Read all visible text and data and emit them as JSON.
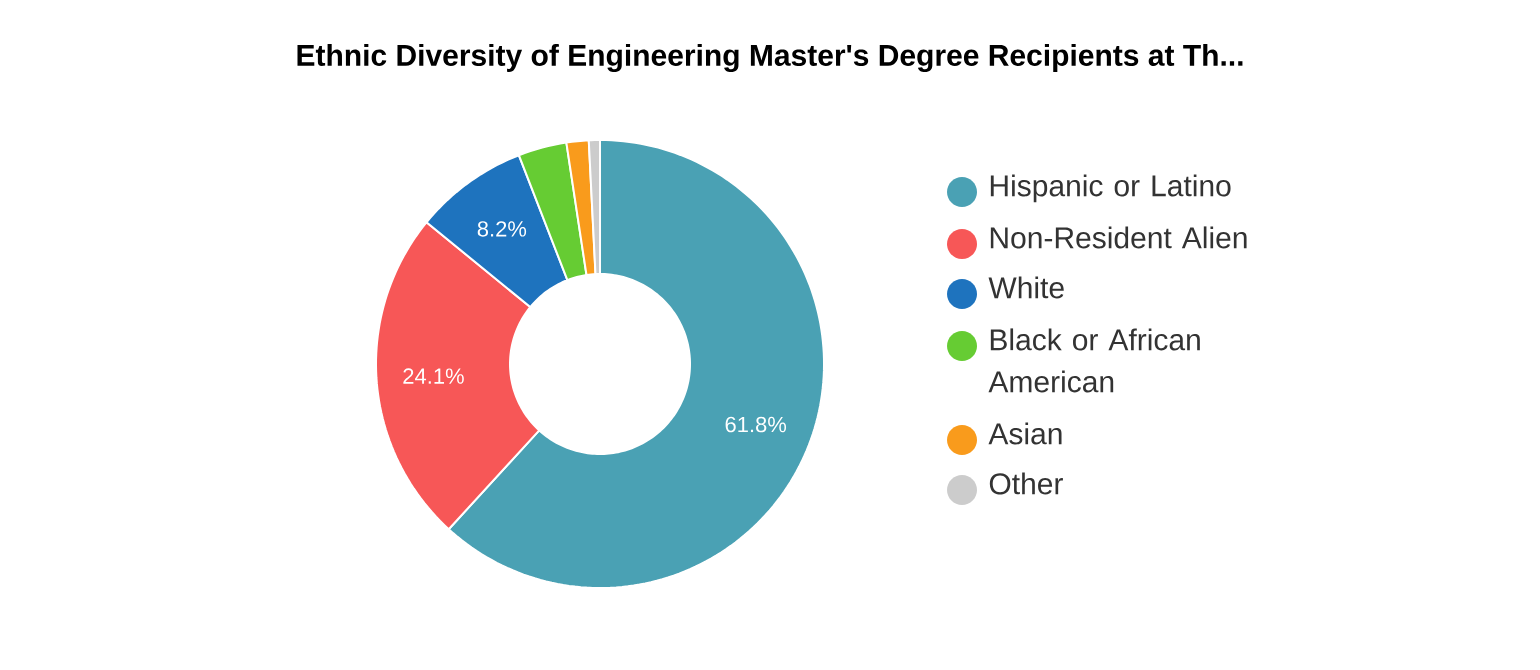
{
  "chart_data": {
    "type": "donut",
    "title": "Ethnic Diversity of Engineering Master's Degree Recipients at Th...",
    "categories": [
      "Hispanic or Latino",
      "Non-Resident Alien",
      "White",
      "Black or African American",
      "Asian",
      "Other"
    ],
    "values": [
      61.8,
      24.1,
      8.2,
      3.5,
      1.6,
      0.8
    ],
    "colors": [
      "#4aa1b4",
      "#f75757",
      "#1e73be",
      "#66cc33",
      "#f99b1c",
      "#cccccc"
    ],
    "value_labels": [
      "61.8%",
      "24.1%",
      "8.2%",
      null,
      null,
      null
    ],
    "legend": "right"
  }
}
